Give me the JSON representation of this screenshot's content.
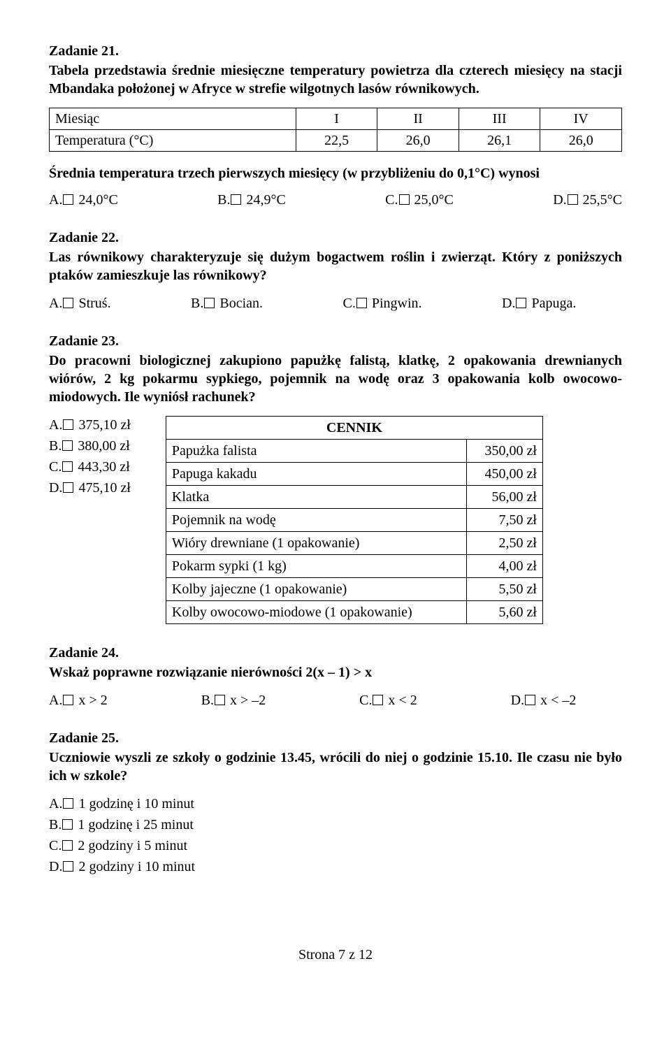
{
  "z21": {
    "title": "Zadanie 21.",
    "body": "Tabela przedstawia średnie miesięczne temperatury powietrza dla czterech miesięcy na stacji Mbandaka położonej w Afryce w strefie wilgotnych lasów równikowych.",
    "table": {
      "cols": [
        "Miesiąc",
        "I",
        "II",
        "III",
        "IV"
      ],
      "row_label": "Temperatura (°C)",
      "vals": [
        "22,5",
        "26,0",
        "26,1",
        "26,0"
      ]
    },
    "question": "Średnia temperatura trzech pierwszych miesięcy (w przybliżeniu do 0,1°C) wynosi",
    "choices": {
      "a": "24,0°C",
      "b": "24,9°C",
      "c": "25,0°C",
      "d": "25,5°C"
    }
  },
  "z22": {
    "title": "Zadanie 22.",
    "body": "Las równikowy charakteryzuje się dużym bogactwem roślin i zwierząt. Który z poniższych ptaków zamieszkuje las równikowy?",
    "choices": {
      "a": "Struś.",
      "b": "Bocian.",
      "c": "Pingwin.",
      "d": "Papuga."
    }
  },
  "z23": {
    "title": "Zadanie 23.",
    "body": "Do pracowni biologicznej zakupiono papużkę falistą, klatkę, 2 opakowania drewnianych wiórów, 2 kg pokarmu sypkiego, pojemnik na wodę oraz 3 opakowania kolb owocowo-miodowych. Ile wyniósł rachunek?",
    "choices": {
      "a": "375,10 zł",
      "b": "380,00 zł",
      "c": "443,30 zł",
      "d": "475,10 zł"
    },
    "cennik": {
      "header": "CENNIK",
      "rows": [
        [
          "Papużka falista",
          "350,00 zł"
        ],
        [
          "Papuga kakadu",
          "450,00 zł"
        ],
        [
          "Klatka",
          "56,00 zł"
        ],
        [
          "Pojemnik na wodę",
          "7,50 zł"
        ],
        [
          "Wióry drewniane (1 opakowanie)",
          "2,50 zł"
        ],
        [
          "Pokarm sypki (1 kg)",
          "4,00 zł"
        ],
        [
          "Kolby jajeczne (1 opakowanie)",
          "5,50 zł"
        ],
        [
          "Kolby owocowo-miodowe (1 opakowanie)",
          "5,60 zł"
        ]
      ]
    }
  },
  "z24": {
    "title": "Zadanie 24.",
    "body": "Wskaż poprawne rozwiązanie nierówności  2(x – 1) > x",
    "choices": {
      "a": "x > 2",
      "b": "x > –2",
      "c": "x < 2",
      "d": "x < –2"
    }
  },
  "z25": {
    "title": "Zadanie 25.",
    "body": "Uczniowie wyszli ze szkoły o godzinie 13.45, wrócili do niej o godzinie 15.10. Ile czasu nie było ich w szkole?",
    "choices": {
      "a": "1 godzinę i 10 minut",
      "b": "1 godzinę i 25 minut",
      "c": "2 godziny i 5 minut",
      "d": "2 godziny i 10 minut"
    }
  },
  "footer": "Strona 7 z 12",
  "labels": {
    "A": "A.",
    "B": "B.",
    "C": "C.",
    "D": "D."
  }
}
